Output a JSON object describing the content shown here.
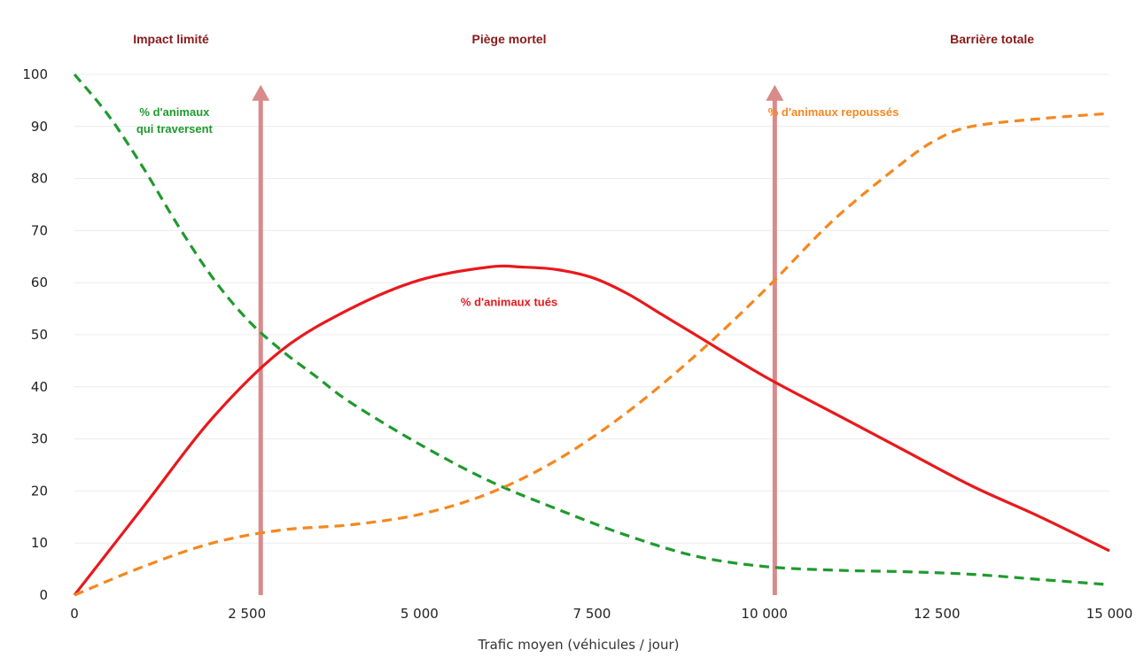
{
  "chart_data": {
    "type": "line",
    "xlabel": "Trafic moyen (véhicules / jour)",
    "ylabel": "",
    "xlim": [
      0,
      15000
    ],
    "ylim": [
      0,
      100
    ],
    "grid": "horizontal",
    "x_ticks": [
      {
        "value": 0,
        "label": "0"
      },
      {
        "value": 2500,
        "label": "2 500"
      },
      {
        "value": 5000,
        "label": "5 000"
      },
      {
        "value": 7500,
        "label": "7 500"
      },
      {
        "value": 10000,
        "label": "10 000"
      },
      {
        "value": 12500,
        "label": "12 500"
      },
      {
        "value": 15000,
        "label": "15 000"
      }
    ],
    "y_ticks": [
      {
        "value": 0,
        "label": "0"
      },
      {
        "value": 10,
        "label": "10"
      },
      {
        "value": 20,
        "label": "20"
      },
      {
        "value": 30,
        "label": "30"
      },
      {
        "value": 40,
        "label": "40"
      },
      {
        "value": 50,
        "label": "50"
      },
      {
        "value": 60,
        "label": "60"
      },
      {
        "value": 70,
        "label": "70"
      },
      {
        "value": 80,
        "label": "80"
      },
      {
        "value": 90,
        "label": "90"
      },
      {
        "value": 100,
        "label": "100"
      }
    ],
    "zones": [
      {
        "label": "Impact limité",
        "x": 1400
      },
      {
        "label": "Piège mortel",
        "x": 6300
      },
      {
        "label": "Barrière totale",
        "x": 13300
      }
    ],
    "thresholds": [
      {
        "x": 2700,
        "y_top": 98,
        "color": "#d98a8a"
      },
      {
        "x": 10150,
        "y_top": 98,
        "color": "#d98a8a"
      }
    ],
    "series": [
      {
        "name": "% d'animaux tués",
        "color": "#e8191d",
        "style": "solid",
        "label_lines": [
          "% d'animaux tués"
        ],
        "label_anchor": {
          "x": 6300,
          "y": 55
        },
        "x": [
          0,
          1000,
          2000,
          3000,
          4000,
          5000,
          6000,
          6500,
          7000,
          7500,
          8000,
          8500,
          9000,
          10000,
          11000,
          12000,
          13000,
          14000,
          15000
        ],
        "values": [
          0,
          17,
          34,
          47,
          55,
          60.5,
          63,
          63,
          62.5,
          61,
          58,
          54,
          50,
          42,
          35,
          28,
          21,
          15,
          8.5
        ]
      },
      {
        "name": "% d'animaux qui traversent",
        "color": "#1f9a2e",
        "style": "dashed",
        "label_lines": [
          "% d'animaux",
          "qui traversent"
        ],
        "label_anchor": {
          "x": 1450,
          "y": 91.5
        },
        "x": [
          0,
          500,
          1000,
          1500,
          2000,
          2500,
          3000,
          3500,
          4000,
          5000,
          6000,
          7000,
          8000,
          9000,
          10000,
          11000,
          12000,
          13000,
          14000,
          15000
        ],
        "values": [
          100,
          92,
          82,
          71,
          61,
          53,
          47,
          42,
          37,
          29,
          22,
          16.5,
          11.5,
          7.5,
          5.5,
          4.8,
          4.5,
          4,
          3,
          2
        ]
      },
      {
        "name": "% d'animaux repoussés",
        "color": "#f5871f",
        "style": "dashed",
        "label_lines": [
          "% d'animaux repoussés"
        ],
        "label_anchor": {
          "x": 11000,
          "y": 91.5
        },
        "x": [
          0,
          1000,
          2000,
          3000,
          4000,
          5000,
          6000,
          7000,
          8000,
          9000,
          10000,
          11000,
          12000,
          12500,
          13000,
          14000,
          15000
        ],
        "values": [
          0,
          5.5,
          10,
          12.5,
          13.5,
          15.5,
          19.5,
          26,
          35,
          46,
          58.5,
          72,
          83,
          87.5,
          90,
          91.5,
          92.5
        ]
      }
    ]
  }
}
